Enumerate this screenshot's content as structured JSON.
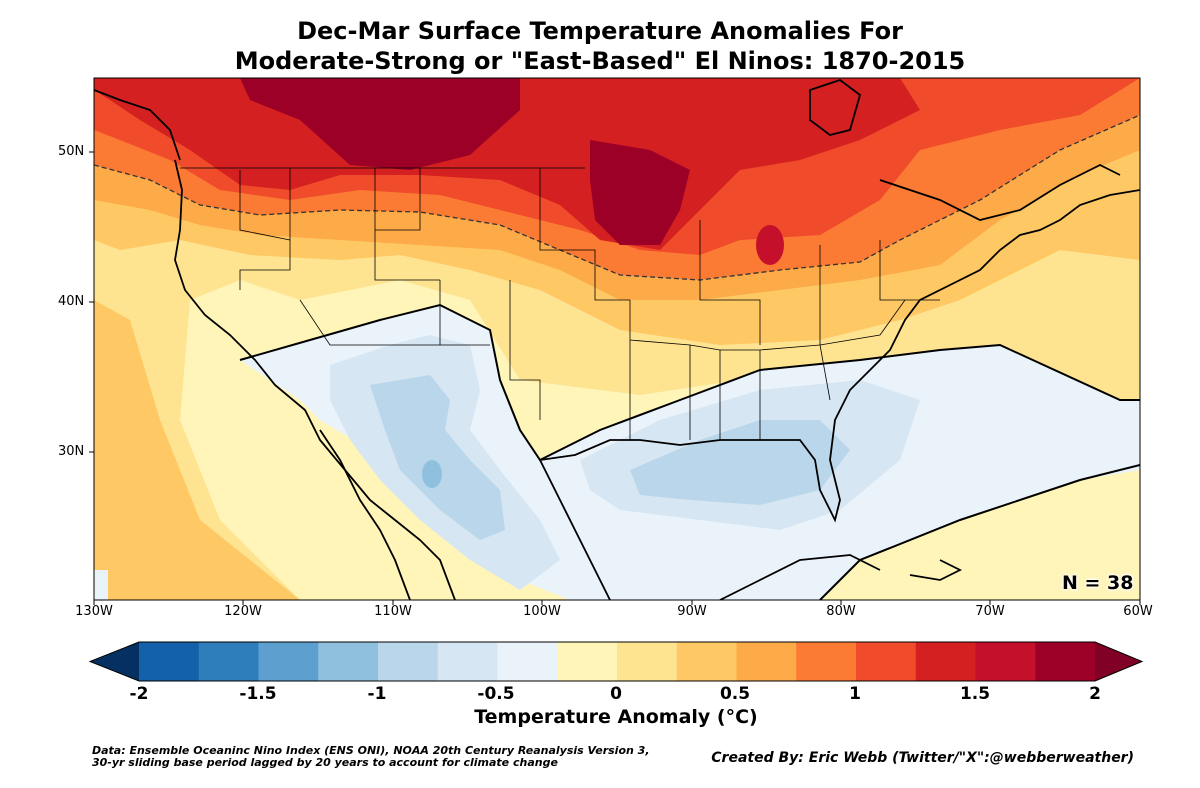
{
  "title": {
    "line1": "Dec-Mar Surface Temperature Anomalies For",
    "line2": "Moderate-Strong or \"East-Based\" El Ninos: 1870-2015"
  },
  "map": {
    "lat_labels": [
      "50N",
      "40N",
      "30N"
    ],
    "lon_labels": [
      "130W",
      "120W",
      "110W",
      "100W",
      "90W",
      "80W",
      "70W",
      "60W"
    ],
    "n_label": "N = 38"
  },
  "colorbar": {
    "title": "Temperature Anomaly (°C)",
    "tick_labels": [
      "-2",
      "-1.5",
      "-1",
      "-0.5",
      "0",
      "0.5",
      "1",
      "1.5",
      "2"
    ],
    "colors": [
      "#053061",
      "#08306b",
      "#1361a9",
      "#2f7ebc",
      "#5da0cf",
      "#8fc1de",
      "#b9d6ea",
      "#d6e6f3",
      "#eaf2fa",
      "#fff5b8",
      "#fee391",
      "#fec864",
      "#fdaa48",
      "#fb7b35",
      "#f04b2a",
      "#d42020",
      "#c5102c",
      "#9c0026",
      "#800026"
    ]
  },
  "footer": {
    "source_line1": "Data: Ensemble Oceaninc Nino Index (ENS ONI), NOAA 20th Century Reanalysis Version 3,",
    "source_line2": " 30-yr sliding base period lagged by 20 years to account for climate change",
    "credit": "Created By: Eric Webb (Twitter/\"X\":@webberweather)"
  }
}
